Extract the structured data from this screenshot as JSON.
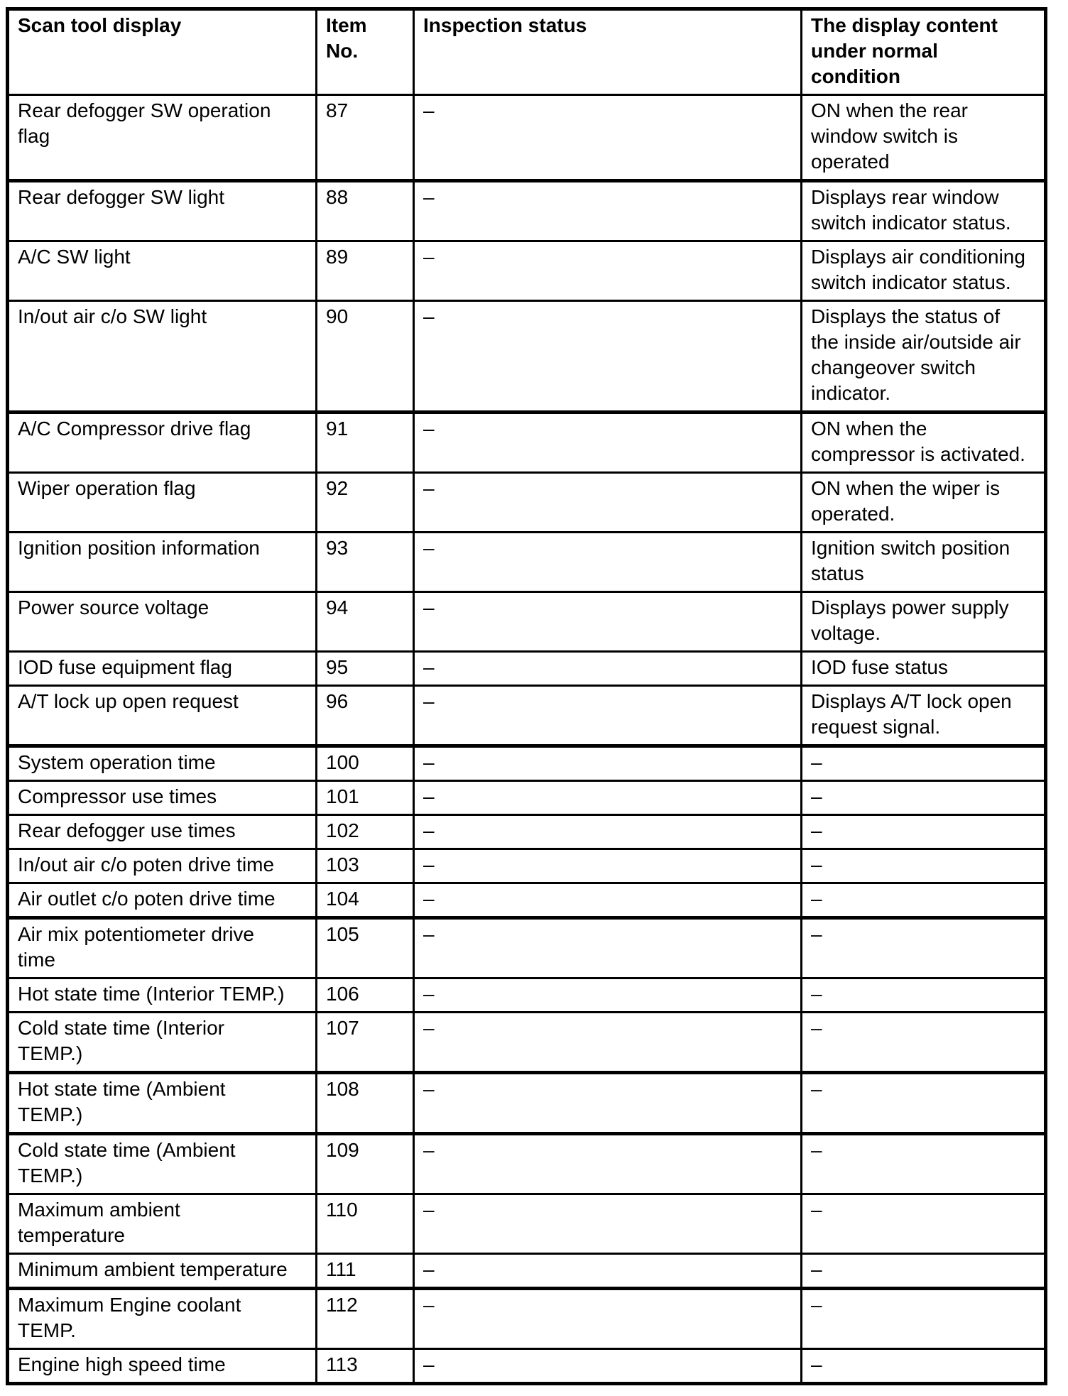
{
  "table": {
    "headers": {
      "display": "Scan tool display",
      "item_no": "Item\nNo.",
      "inspection": "Inspection status",
      "content": "The display content\nunder normal\ncondition"
    },
    "rows": [
      {
        "display": "Rear defogger SW operation\nflag",
        "item_no": "87",
        "inspection": "–",
        "content": "ON when the rear\nwindow switch is\noperated"
      },
      {
        "display": "Rear defogger SW light",
        "item_no": "88",
        "inspection": "–",
        "content": "Displays rear window\nswitch indicator status."
      },
      {
        "display": "A/C SW light",
        "item_no": "89",
        "inspection": "–",
        "content": "Displays air conditioning\nswitch indicator status."
      },
      {
        "display": "In/out air c/o SW light",
        "item_no": "90",
        "inspection": "–",
        "content": "Displays the status of\nthe inside air/outside air\nchangeover switch\nindicator."
      },
      {
        "display": "A/C Compressor drive flag",
        "item_no": "91",
        "inspection": "–",
        "content": "ON when the\ncompressor is activated."
      },
      {
        "display": "Wiper operation flag",
        "item_no": "92",
        "inspection": "–",
        "content": "ON when the wiper is\noperated."
      },
      {
        "display": "Ignition position information",
        "item_no": "93",
        "inspection": "–",
        "content": "Ignition switch position\nstatus"
      },
      {
        "display": "Power source voltage",
        "item_no": "94",
        "inspection": "–",
        "content": "Displays power supply\nvoltage."
      },
      {
        "display": "IOD fuse equipment flag",
        "item_no": "95",
        "inspection": "–",
        "content": "IOD fuse status"
      },
      {
        "display": "A/T lock up open request",
        "item_no": "96",
        "inspection": "–",
        "content": "Displays A/T lock open\nrequest signal."
      },
      {
        "display": "System operation time",
        "item_no": "100",
        "inspection": "–",
        "content": "–"
      },
      {
        "display": "Compressor use times",
        "item_no": "101",
        "inspection": "–",
        "content": "–"
      },
      {
        "display": "Rear defogger use times",
        "item_no": "102",
        "inspection": "–",
        "content": "–"
      },
      {
        "display": "In/out air c/o poten drive time",
        "item_no": "103",
        "inspection": "–",
        "content": "–"
      },
      {
        "display": "Air outlet c/o poten drive time",
        "item_no": "104",
        "inspection": "–",
        "content": "–"
      },
      {
        "display": "Air mix potentiometer drive\ntime",
        "item_no": "105",
        "inspection": "–",
        "content": "–"
      },
      {
        "display": "Hot state time (Interior TEMP.)",
        "item_no": "106",
        "inspection": "–",
        "content": "–"
      },
      {
        "display": "Cold state time (Interior\nTEMP.)",
        "item_no": "107",
        "inspection": "–",
        "content": "–"
      },
      {
        "display": "Hot state time (Ambient\nTEMP.)",
        "item_no": "108",
        "inspection": "–",
        "content": "–"
      },
      {
        "display": "Cold state time (Ambient\nTEMP.)",
        "item_no": "109",
        "inspection": "–",
        "content": "–"
      },
      {
        "display": "Maximum ambient\ntemperature",
        "item_no": "110",
        "inspection": "–",
        "content": "–"
      },
      {
        "display": "Minimum ambient temperature",
        "item_no": "111",
        "inspection": "–",
        "content": "–"
      },
      {
        "display": "Maximum Engine coolant\nTEMP.",
        "item_no": "112",
        "inspection": "–",
        "content": "–"
      },
      {
        "display": "Engine high speed time",
        "item_no": "113",
        "inspection": "–",
        "content": "–"
      }
    ]
  }
}
